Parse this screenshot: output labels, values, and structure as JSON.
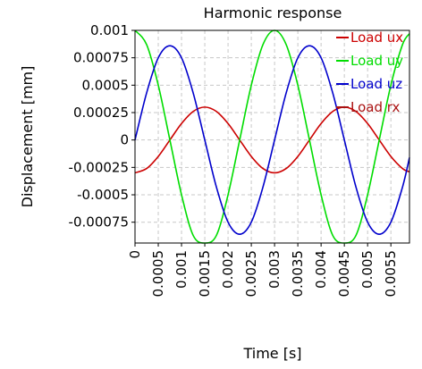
{
  "chart_data": {
    "type": "line",
    "title": "Harmonic response",
    "xlabel": "Time [s]",
    "ylabel": "Displacement [mm]",
    "xlim": [
      0,
      0.0059
    ],
    "ylim": [
      -0.00094,
      0.001
    ],
    "grid": true,
    "legend_position": "top-right",
    "x_ticks": [
      {
        "v": 0,
        "label": "0"
      },
      {
        "v": 0.0005,
        "label": "0.0005"
      },
      {
        "v": 0.001,
        "label": "0.001"
      },
      {
        "v": 0.0015,
        "label": "0.0015"
      },
      {
        "v": 0.002,
        "label": "0.002"
      },
      {
        "v": 0.0025,
        "label": "0.0025"
      },
      {
        "v": 0.003,
        "label": "0.003"
      },
      {
        "v": 0.0035,
        "label": "0.0035"
      },
      {
        "v": 0.004,
        "label": "0.004"
      },
      {
        "v": 0.0045,
        "label": "0.0045"
      },
      {
        "v": 0.005,
        "label": "0.005"
      },
      {
        "v": 0.0055,
        "label": "0.0055"
      }
    ],
    "y_ticks": [
      {
        "v": 0.001,
        "label": "0.001"
      },
      {
        "v": 0.00075,
        "label": "0.00075"
      },
      {
        "v": 0.0005,
        "label": "0.0005"
      },
      {
        "v": 0.00025,
        "label": "0.00025"
      },
      {
        "v": 0,
        "label": "0"
      },
      {
        "v": -0.00025,
        "label": "-0.00025"
      },
      {
        "v": -0.0005,
        "label": "-0.0005"
      },
      {
        "v": -0.00075,
        "label": "-0.00075"
      }
    ],
    "series": [
      {
        "name": "Load ux",
        "color": "#cc0000",
        "x": [
          0,
          0.00025,
          0.0005,
          0.00075,
          0.001,
          0.00125,
          0.0015,
          0.00175,
          0.002,
          0.00225,
          0.0025,
          0.00275,
          0.003,
          0.00325,
          0.0035,
          0.00375,
          0.004,
          0.00425,
          0.0045,
          0.00475,
          0.005,
          0.00525,
          0.0055,
          0.00575,
          0.0059
        ],
        "y": [
          -0.0003,
          -0.00026,
          -0.00015,
          0.0,
          0.00015,
          0.00026,
          0.0003,
          0.00026,
          0.00015,
          0.0,
          -0.00015,
          -0.00026,
          -0.0003,
          -0.00026,
          -0.00015,
          0.0,
          0.00015,
          0.00026,
          0.0003,
          0.00026,
          0.00015,
          0.0,
          -0.00015,
          -0.00026,
          -0.00029
        ]
      },
      {
        "name": "Load uy",
        "color": "#00dd00",
        "x": [
          0,
          0.00025,
          0.0005,
          0.00075,
          0.001,
          0.00125,
          0.0015,
          0.00175,
          0.002,
          0.00225,
          0.0025,
          0.00275,
          0.003,
          0.00325,
          0.0035,
          0.00375,
          0.004,
          0.00425,
          0.0045,
          0.00475,
          0.005,
          0.00525,
          0.0055,
          0.00575,
          0.0059
        ],
        "y": [
          0.001,
          0.00087,
          0.0005,
          0.0,
          -0.0005,
          -0.00087,
          -0.00094,
          -0.00087,
          -0.0005,
          0.0,
          0.0005,
          0.00087,
          0.001,
          0.00087,
          0.0005,
          0.0,
          -0.0005,
          -0.00087,
          -0.00094,
          -0.00087,
          -0.0005,
          0.0,
          0.0005,
          0.00087,
          0.00097
        ]
      },
      {
        "name": "Load uz",
        "color": "#0000cc",
        "x": [
          0,
          0.00025,
          0.0005,
          0.00075,
          0.001,
          0.00125,
          0.0015,
          0.00175,
          0.002,
          0.00225,
          0.0025,
          0.00275,
          0.003,
          0.00325,
          0.0035,
          0.00375,
          0.004,
          0.00425,
          0.0045,
          0.00475,
          0.005,
          0.00525,
          0.0055,
          0.00575,
          0.0059
        ],
        "y": [
          0.0,
          0.00043,
          0.00075,
          0.00086,
          0.00075,
          0.00043,
          0.0,
          -0.00043,
          -0.00075,
          -0.00086,
          -0.00075,
          -0.00043,
          0.0,
          0.00043,
          0.00075,
          0.00086,
          0.00075,
          0.00043,
          0.0,
          -0.00043,
          -0.00075,
          -0.00086,
          -0.00075,
          -0.00043,
          -0.00016
        ]
      },
      {
        "name": "Load rx",
        "color": "#aa1111",
        "x": [],
        "y": []
      }
    ]
  }
}
